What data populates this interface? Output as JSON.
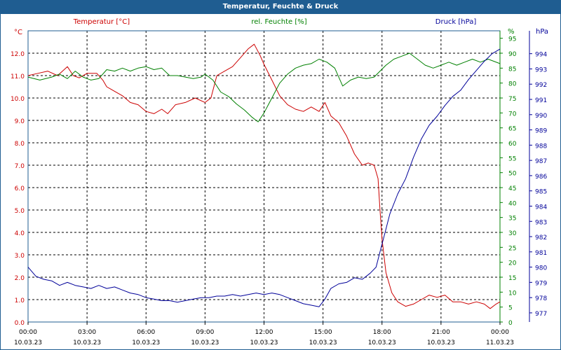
{
  "window": {
    "title": "Temperatur, Feuchte & Druck"
  },
  "chart_data": {
    "type": "line",
    "x_ticks": [
      {
        "time": "00:00",
        "date": "10.03.23"
      },
      {
        "time": "03:00",
        "date": "10.03.23"
      },
      {
        "time": "06:00",
        "date": "10.03.23"
      },
      {
        "time": "09:00",
        "date": "10.03.23"
      },
      {
        "time": "12:00",
        "date": "10.03.23"
      },
      {
        "time": "15:00",
        "date": "10.03.23"
      },
      {
        "time": "18:00",
        "date": "10.03.23"
      },
      {
        "time": "21:00",
        "date": "10.03.23"
      },
      {
        "time": "00:00",
        "date": "11.03.23"
      }
    ],
    "xlim_hours": [
      0,
      24
    ],
    "grid": true,
    "colors": {
      "temperature": "#cc0000",
      "humidity": "#008000",
      "pressure": "#000099",
      "frame": "#1f5d91"
    },
    "axes": {
      "temperature": {
        "unit": "°C",
        "ylim": [
          0,
          13
        ],
        "ticks": [
          "0.0",
          "1.0",
          "2.0",
          "3.0",
          "4.0",
          "5.0",
          "6.0",
          "7.0",
          "8.0",
          "9.0",
          "10.0",
          "11.0",
          "12.0"
        ]
      },
      "humidity": {
        "unit": "%",
        "ylim": [
          0,
          97.5
        ],
        "ticks": [
          "0",
          "5",
          "10",
          "15",
          "20",
          "25",
          "30",
          "35",
          "40",
          "45",
          "50",
          "55",
          "60",
          "65",
          "70",
          "75",
          "80",
          "85",
          "90",
          "95"
        ]
      },
      "pressure": {
        "unit": "hPa",
        "ylim": [
          976.4,
          995.5
        ],
        "ticks": [
          "977",
          "978",
          "979",
          "980",
          "981",
          "982",
          "983",
          "984",
          "985",
          "986",
          "987",
          "988",
          "989",
          "990",
          "991",
          "992",
          "993",
          "994"
        ]
      }
    },
    "series": [
      {
        "name": "Temperatur [°C]",
        "axis": "temperature",
        "points": [
          [
            0,
            11.0
          ],
          [
            0.5,
            11.1
          ],
          [
            1,
            11.2
          ],
          [
            1.5,
            11.0
          ],
          [
            2,
            11.4
          ],
          [
            2.3,
            11.0
          ],
          [
            2.6,
            10.9
          ],
          [
            3,
            11.1
          ],
          [
            3.5,
            11.1
          ],
          [
            3.8,
            10.8
          ],
          [
            4,
            10.5
          ],
          [
            4.4,
            10.3
          ],
          [
            4.8,
            10.1
          ],
          [
            5.2,
            9.8
          ],
          [
            5.6,
            9.7
          ],
          [
            6,
            9.4
          ],
          [
            6.4,
            9.3
          ],
          [
            6.8,
            9.5
          ],
          [
            7.1,
            9.3
          ],
          [
            7.5,
            9.7
          ],
          [
            8,
            9.8
          ],
          [
            8.5,
            10.0
          ],
          [
            9,
            9.8
          ],
          [
            9.3,
            10.0
          ],
          [
            9.6,
            11.0
          ],
          [
            10,
            11.2
          ],
          [
            10.4,
            11.4
          ],
          [
            10.8,
            11.8
          ],
          [
            11.2,
            12.2
          ],
          [
            11.5,
            12.4
          ],
          [
            11.8,
            11.9
          ],
          [
            12,
            11.5
          ],
          [
            12.4,
            10.8
          ],
          [
            12.8,
            10.1
          ],
          [
            13.2,
            9.7
          ],
          [
            13.6,
            9.5
          ],
          [
            14,
            9.4
          ],
          [
            14.4,
            9.6
          ],
          [
            14.8,
            9.4
          ],
          [
            15.1,
            9.8
          ],
          [
            15.4,
            9.2
          ],
          [
            15.8,
            8.9
          ],
          [
            16.2,
            8.3
          ],
          [
            16.6,
            7.5
          ],
          [
            17,
            7.0
          ],
          [
            17.3,
            7.1
          ],
          [
            17.6,
            7.0
          ],
          [
            17.8,
            6.4
          ],
          [
            17.9,
            5.0
          ],
          [
            18,
            3.7
          ],
          [
            18.2,
            2.2
          ],
          [
            18.5,
            1.3
          ],
          [
            18.8,
            0.9
          ],
          [
            19.2,
            0.7
          ],
          [
            19.6,
            0.8
          ],
          [
            20,
            1.0
          ],
          [
            20.4,
            1.2
          ],
          [
            20.8,
            1.1
          ],
          [
            21.2,
            1.2
          ],
          [
            21.6,
            0.9
          ],
          [
            22,
            0.9
          ],
          [
            22.4,
            0.8
          ],
          [
            22.8,
            0.9
          ],
          [
            23.2,
            0.8
          ],
          [
            23.5,
            0.6
          ],
          [
            23.8,
            0.8
          ],
          [
            24,
            0.9
          ]
        ]
      },
      {
        "name": "rel. Feuchte [%]",
        "axis": "humidity",
        "points": [
          [
            0,
            82
          ],
          [
            0.6,
            81
          ],
          [
            1.2,
            82
          ],
          [
            1.6,
            83
          ],
          [
            2,
            81.5
          ],
          [
            2.4,
            84
          ],
          [
            2.8,
            82
          ],
          [
            3.2,
            81
          ],
          [
            3.6,
            81.5
          ],
          [
            4,
            84.5
          ],
          [
            4.4,
            84
          ],
          [
            4.8,
            85
          ],
          [
            5.2,
            84
          ],
          [
            5.6,
            85
          ],
          [
            6,
            85.5
          ],
          [
            6.4,
            84.5
          ],
          [
            6.8,
            85
          ],
          [
            7.2,
            82.5
          ],
          [
            7.6,
            82.5
          ],
          [
            8,
            82
          ],
          [
            8.4,
            81.5
          ],
          [
            8.8,
            82
          ],
          [
            9,
            83
          ],
          [
            9.4,
            81
          ],
          [
            9.8,
            77
          ],
          [
            10.2,
            75.5
          ],
          [
            10.6,
            73
          ],
          [
            11,
            71
          ],
          [
            11.4,
            68.5
          ],
          [
            11.7,
            67
          ],
          [
            12,
            70
          ],
          [
            12.4,
            75
          ],
          [
            12.8,
            80
          ],
          [
            13.2,
            83
          ],
          [
            13.6,
            85
          ],
          [
            14,
            86
          ],
          [
            14.4,
            86.5
          ],
          [
            14.8,
            88
          ],
          [
            15.2,
            87
          ],
          [
            15.6,
            85
          ],
          [
            16,
            79
          ],
          [
            16.4,
            81
          ],
          [
            16.8,
            82
          ],
          [
            17.2,
            81.5
          ],
          [
            17.6,
            82
          ],
          [
            17.9,
            84
          ],
          [
            18.2,
            86
          ],
          [
            18.6,
            88
          ],
          [
            19,
            89
          ],
          [
            19.4,
            90
          ],
          [
            19.8,
            88
          ],
          [
            20.2,
            86
          ],
          [
            20.6,
            85
          ],
          [
            21,
            86
          ],
          [
            21.4,
            87
          ],
          [
            21.8,
            86
          ],
          [
            22.2,
            87
          ],
          [
            22.6,
            88
          ],
          [
            23,
            87
          ],
          [
            23.4,
            88
          ],
          [
            24,
            86.5
          ]
        ]
      },
      {
        "name": "Druck [hPa]",
        "axis": "pressure",
        "points": [
          [
            0,
            980
          ],
          [
            0.4,
            979.4
          ],
          [
            0.8,
            979.2
          ],
          [
            1.2,
            979.1
          ],
          [
            1.6,
            978.8
          ],
          [
            2,
            979
          ],
          [
            2.4,
            978.8
          ],
          [
            2.8,
            978.7
          ],
          [
            3.2,
            978.6
          ],
          [
            3.6,
            978.8
          ],
          [
            4,
            978.6
          ],
          [
            4.4,
            978.7
          ],
          [
            4.8,
            978.5
          ],
          [
            5.2,
            978.3
          ],
          [
            5.6,
            978.2
          ],
          [
            6,
            978
          ],
          [
            6.4,
            977.9
          ],
          [
            6.8,
            977.8
          ],
          [
            7.2,
            977.8
          ],
          [
            7.6,
            977.7
          ],
          [
            8,
            977.8
          ],
          [
            8.4,
            977.9
          ],
          [
            8.8,
            978
          ],
          [
            9.2,
            978
          ],
          [
            9.6,
            978.1
          ],
          [
            10,
            978.1
          ],
          [
            10.4,
            978.2
          ],
          [
            10.8,
            978.1
          ],
          [
            11.2,
            978.2
          ],
          [
            11.6,
            978.3
          ],
          [
            12,
            978.2
          ],
          [
            12.4,
            978.3
          ],
          [
            12.8,
            978.2
          ],
          [
            13.2,
            978
          ],
          [
            13.6,
            977.8
          ],
          [
            14,
            977.6
          ],
          [
            14.4,
            977.5
          ],
          [
            14.8,
            977.4
          ],
          [
            15.1,
            977.9
          ],
          [
            15.4,
            978.6
          ],
          [
            15.8,
            978.9
          ],
          [
            16.2,
            979
          ],
          [
            16.6,
            979.3
          ],
          [
            17,
            979.2
          ],
          [
            17.4,
            979.6
          ],
          [
            17.7,
            980
          ],
          [
            17.9,
            981
          ],
          [
            18.1,
            982
          ],
          [
            18.4,
            983.5
          ],
          [
            18.8,
            984.8
          ],
          [
            19.2,
            985.8
          ],
          [
            19.6,
            987.2
          ],
          [
            20,
            988.4
          ],
          [
            20.4,
            989.3
          ],
          [
            20.8,
            989.9
          ],
          [
            21.2,
            990.6
          ],
          [
            21.6,
            991.2
          ],
          [
            22,
            991.6
          ],
          [
            22.4,
            992.3
          ],
          [
            22.8,
            992.9
          ],
          [
            23.2,
            993.5
          ],
          [
            23.6,
            994
          ],
          [
            24,
            994.3
          ]
        ]
      }
    ]
  }
}
